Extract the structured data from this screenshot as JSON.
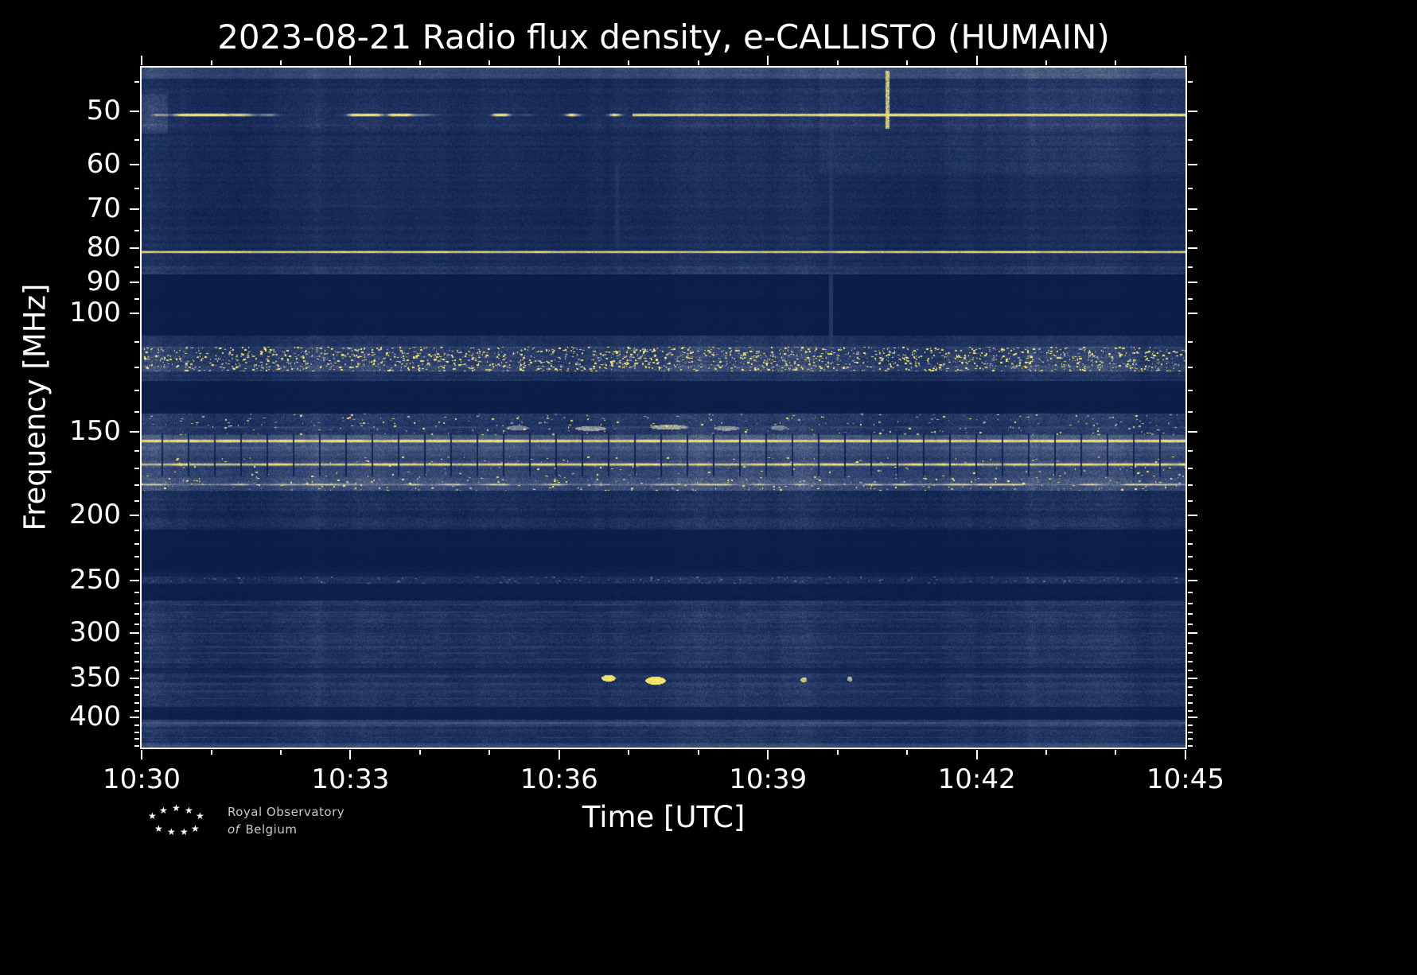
{
  "chart_data": {
    "type": "heatmap",
    "title": "2023-08-21 Radio flux density, e-CALLISTO (HUMAIN)",
    "xlabel": "Time [UTC]",
    "ylabel": "Frequency [MHz]",
    "x_range": [
      "10:30",
      "10:45"
    ],
    "x_ticks": [
      {
        "label": "10:30",
        "t": 0.0
      },
      {
        "label": "10:33",
        "t": 0.2
      },
      {
        "label": "10:36",
        "t": 0.4
      },
      {
        "label": "10:39",
        "t": 0.6
      },
      {
        "label": "10:42",
        "t": 0.8
      },
      {
        "label": "10:45",
        "t": 1.0
      }
    ],
    "x_minor_t": [
      0.0667,
      0.1333,
      0.2667,
      0.3333,
      0.4667,
      0.5333,
      0.6667,
      0.7333,
      0.8667,
      0.9333
    ],
    "y_scale": "log",
    "y_inverted": true,
    "y_range": [
      43,
      444
    ],
    "y_ticks": [
      {
        "label": "50",
        "f": 50
      },
      {
        "label": "60",
        "f": 60
      },
      {
        "label": "70",
        "f": 70
      },
      {
        "label": "80",
        "f": 80
      },
      {
        "label": "90",
        "f": 90
      },
      {
        "label": "100",
        "f": 100
      },
      {
        "label": "150",
        "f": 150
      },
      {
        "label": "200",
        "f": 200
      },
      {
        "label": "250",
        "f": 250
      },
      {
        "label": "300",
        "f": 300
      },
      {
        "label": "350",
        "f": 350
      },
      {
        "label": "400",
        "f": 400
      }
    ],
    "y_minor_f": [
      45,
      55,
      65,
      75,
      85,
      95,
      110,
      120,
      130,
      140,
      160,
      170,
      180,
      190,
      210,
      220,
      230,
      240,
      260,
      270,
      280,
      290,
      310,
      320,
      330,
      340,
      360,
      370,
      380,
      390,
      410,
      420,
      430,
      440
    ],
    "colormap": [
      [
        0.0,
        "#081a43"
      ],
      [
        0.25,
        "#1d315f"
      ],
      [
        0.45,
        "#3d4f79"
      ],
      [
        0.62,
        "#707c93"
      ],
      [
        0.75,
        "#a8aca9"
      ],
      [
        0.85,
        "#e8d75c"
      ],
      [
        1.0,
        "#ffef6e"
      ]
    ],
    "bands": [
      {
        "f0": 43.0,
        "f1": 44.7,
        "base": 0.4,
        "amp": 0.08,
        "row": 0.05,
        "pix": 0.08
      },
      {
        "f0": 44.7,
        "f1": 48.6,
        "base": 0.22,
        "amp": 0.08,
        "row": 0.05,
        "pix": 0.1
      },
      {
        "f0": 48.6,
        "f1": 53.0,
        "base": 0.26,
        "amp": 0.1,
        "row": 0.05,
        "pix": 0.11
      },
      {
        "f0": 53.0,
        "f1": 85.0,
        "base": 0.2,
        "amp": 0.07,
        "row": 0.05,
        "pix": 0.1
      },
      {
        "f0": 85.0,
        "f1": 87.5,
        "base": 0.3,
        "amp": 0.08,
        "row": 0.05,
        "pix": 0.1
      },
      {
        "f0": 87.5,
        "f1": 108.0,
        "base": 0.05,
        "amp": 0.01,
        "row": 0.01,
        "pix": 0.02
      },
      {
        "f0": 108.0,
        "f1": 112.0,
        "base": 0.24,
        "amp": 0.08,
        "row": 0.05,
        "pix": 0.1
      },
      {
        "f0": 112.0,
        "f1": 122.0,
        "base": 0.36,
        "amp": 0.1,
        "row": 0.06,
        "pix": 0.12,
        "speckle": 0.3,
        "speckle_val": 0.95
      },
      {
        "f0": 122.0,
        "f1": 126.0,
        "base": 0.26,
        "amp": 0.08,
        "row": 0.05,
        "pix": 0.1
      },
      {
        "f0": 126.0,
        "f1": 141.0,
        "base": 0.055,
        "amp": 0.01,
        "row": 0.01,
        "pix": 0.02
      },
      {
        "f0": 141.0,
        "f1": 146.0,
        "base": 0.32,
        "amp": 0.09,
        "row": 0.05,
        "pix": 0.12,
        "speckle": 0.05,
        "speckle_val": 0.8
      },
      {
        "f0": 146.0,
        "f1": 152.0,
        "base": 0.3,
        "amp": 0.09,
        "row": 0.05,
        "pix": 0.12,
        "speckle": 0.04,
        "speckle_val": 0.85
      },
      {
        "f0": 152.0,
        "f1": 163.0,
        "base": 0.45,
        "amp": 0.07,
        "row": 0.04,
        "pix": 0.09
      },
      {
        "f0": 163.0,
        "f1": 176.0,
        "base": 0.4,
        "amp": 0.08,
        "row": 0.05,
        "pix": 0.1,
        "speckle": 0.03,
        "speckle_val": 0.9
      },
      {
        "f0": 176.0,
        "f1": 184.0,
        "base": 0.44,
        "amp": 0.09,
        "row": 0.05,
        "pix": 0.11,
        "speckle": 0.06,
        "speckle_val": 0.95
      },
      {
        "f0": 184.0,
        "f1": 210.0,
        "base": 0.22,
        "amp": 0.09,
        "row": 0.06,
        "pix": 0.12
      },
      {
        "f0": 210.0,
        "f1": 243.0,
        "base": 0.055,
        "amp": 0.01,
        "row": 0.01,
        "pix": 0.02
      },
      {
        "f0": 243.0,
        "f1": 247.0,
        "base": 0.1,
        "amp": 0.03,
        "row": 0.02,
        "pix": 0.05
      },
      {
        "f0": 247.0,
        "f1": 253.0,
        "base": 0.2,
        "amp": 0.08,
        "row": 0.05,
        "pix": 0.14,
        "speckle": 0.06,
        "speckle_val": 0.55
      },
      {
        "f0": 253.0,
        "f1": 268.0,
        "base": 0.07,
        "amp": 0.02,
        "row": 0.02,
        "pix": 0.04
      },
      {
        "f0": 268.0,
        "f1": 338.0,
        "base": 0.25,
        "amp": 0.09,
        "row": 0.07,
        "pix": 0.12
      },
      {
        "f0": 338.0,
        "f1": 344.0,
        "base": 0.14,
        "amp": 0.04,
        "row": 0.03,
        "pix": 0.06
      },
      {
        "f0": 344.0,
        "f1": 362.0,
        "base": 0.26,
        "amp": 0.09,
        "row": 0.06,
        "pix": 0.12
      },
      {
        "f0": 362.0,
        "f1": 386.0,
        "base": 0.24,
        "amp": 0.08,
        "row": 0.06,
        "pix": 0.12
      },
      {
        "f0": 386.0,
        "f1": 404.0,
        "base": 0.09,
        "amp": 0.03,
        "row": 0.02,
        "pix": 0.05
      },
      {
        "f0": 404.0,
        "f1": 413.0,
        "base": 0.34,
        "amp": 0.08,
        "row": 0.05,
        "pix": 0.1
      },
      {
        "f0": 413.0,
        "f1": 437.0,
        "base": 0.23,
        "amp": 0.08,
        "row": 0.06,
        "pix": 0.12
      },
      {
        "f0": 437.0,
        "f1": 444.0,
        "base": 0.38,
        "amp": 0.07,
        "row": 0.04,
        "pix": 0.09
      }
    ],
    "lines": [
      {
        "f": 50.6,
        "sigma": 1.6,
        "value": 0.97,
        "flicker": 0.75,
        "solid_from": 0.47
      },
      {
        "f": 81.0,
        "sigma": 1.3,
        "value": 0.98,
        "flicker": 0.1
      },
      {
        "f": 147.8,
        "sigma": 0.9,
        "value": 0.45,
        "flicker": 0.3
      },
      {
        "f": 155.0,
        "sigma": 2.0,
        "value": 0.97,
        "flicker": 0.08
      },
      {
        "f": 158.6,
        "sigma": 0.9,
        "value": 0.58,
        "flicker": 0.2
      },
      {
        "f": 168.0,
        "sigma": 1.8,
        "value": 0.93,
        "flicker": 0.12
      },
      {
        "f": 180.0,
        "sigma": 1.4,
        "value": 0.85,
        "flicker": 0.3
      },
      {
        "f": 272.0,
        "sigma": 0.8,
        "value": 0.4,
        "flicker": 0.3
      },
      {
        "f": 279.0,
        "sigma": 0.8,
        "value": 0.42,
        "flicker": 0.3
      },
      {
        "f": 286.0,
        "sigma": 0.8,
        "value": 0.4,
        "flicker": 0.3
      },
      {
        "f": 300.0,
        "sigma": 0.8,
        "value": 0.38,
        "flicker": 0.3
      },
      {
        "f": 314.0,
        "sigma": 0.8,
        "value": 0.4,
        "flicker": 0.3
      },
      {
        "f": 321.0,
        "sigma": 0.8,
        "value": 0.41,
        "flicker": 0.3
      },
      {
        "f": 328.0,
        "sigma": 0.8,
        "value": 0.39,
        "flicker": 0.3
      },
      {
        "f": 348.0,
        "sigma": 0.8,
        "value": 0.4,
        "flicker": 0.3
      },
      {
        "f": 357.0,
        "sigma": 0.8,
        "value": 0.4,
        "flicker": 0.3
      },
      {
        "f": 366.0,
        "sigma": 0.8,
        "value": 0.37,
        "flicker": 0.3
      },
      {
        "f": 375.0,
        "sigma": 0.8,
        "value": 0.37,
        "flicker": 0.3
      },
      {
        "f": 408.0,
        "sigma": 1.1,
        "value": 0.52,
        "flicker": 0.15
      },
      {
        "f": 418.0,
        "sigma": 0.8,
        "value": 0.36,
        "flicker": 0.3
      },
      {
        "f": 429.0,
        "sigma": 0.8,
        "value": 0.36,
        "flicker": 0.3
      },
      {
        "f": 441.0,
        "sigma": 1.0,
        "value": 0.45,
        "flicker": 0.15
      }
    ],
    "patches": [
      {
        "t0": 0.65,
        "t1": 1.0,
        "f0": 43,
        "f1": 62,
        "add": 0.07
      },
      {
        "t0": 0.0,
        "t1": 0.025,
        "f0": 47,
        "f1": 54,
        "add": 0.12
      }
    ],
    "streaks": [
      {
        "t": 0.714,
        "f0": 43.5,
        "f1": 53,
        "value": 0.88,
        "w": 2
      },
      {
        "t": 0.66,
        "f0": 53,
        "f1": 112,
        "value": 0.32,
        "w": 2
      },
      {
        "t": 0.455,
        "f0": 60,
        "f1": 80,
        "value": 0.3,
        "w": 2
      }
    ],
    "blobs": [
      {
        "t": 0.447,
        "f": 349.5,
        "w": 9,
        "h": 4,
        "value": 0.95
      },
      {
        "t": 0.492,
        "f": 352.5,
        "w": 13,
        "h": 5,
        "value": 0.98
      },
      {
        "t": 0.634,
        "f": 351.5,
        "w": 4,
        "h": 3,
        "value": 0.85
      },
      {
        "t": 0.678,
        "f": 350.5,
        "w": 3,
        "h": 3,
        "value": 0.8
      },
      {
        "t": 0.36,
        "f": 148.0,
        "w": 14,
        "h": 3,
        "value": 0.65
      },
      {
        "t": 0.43,
        "f": 148.3,
        "w": 20,
        "h": 3,
        "value": 0.72
      },
      {
        "t": 0.505,
        "f": 147.6,
        "w": 24,
        "h": 3,
        "value": 0.75
      },
      {
        "t": 0.56,
        "f": 148.2,
        "w": 16,
        "h": 3,
        "value": 0.7
      },
      {
        "t": 0.61,
        "f": 147.9,
        "w": 10,
        "h": 3,
        "value": 0.65
      }
    ],
    "gaps": {
      "period": 33,
      "offset": 8,
      "width": 2,
      "f0": 151,
      "f1": 175,
      "mult": 0.3
    }
  },
  "logo": {
    "line1": "Royal Observatory",
    "line2_italic": "of",
    "line2_rest": "Belgium"
  }
}
